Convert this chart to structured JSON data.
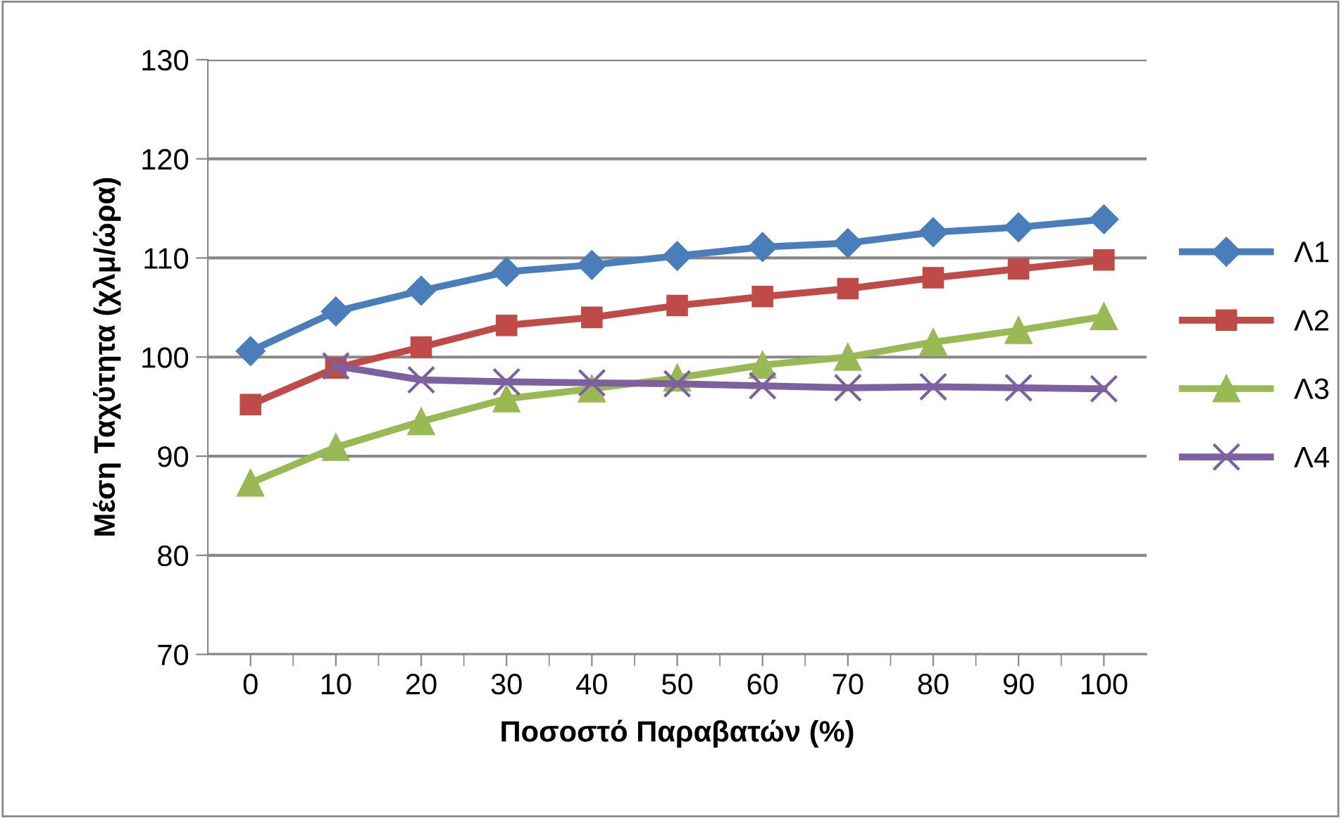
{
  "chart_data": {
    "type": "line",
    "xlabel": "Ποσοστό Παραβατών (%)",
    "ylabel": "Μέση Ταχύτητα (χλμ/ώρα)",
    "categories": [
      "0",
      "10",
      "20",
      "30",
      "40",
      "50",
      "60",
      "70",
      "80",
      "90",
      "100"
    ],
    "series": [
      {
        "name": "Λ1",
        "color": "#4a7ebb",
        "marker": "diamond",
        "values": [
          100.6,
          104.6,
          106.7,
          108.6,
          109.3,
          110.2,
          111.1,
          111.5,
          112.6,
          113.1,
          113.9
        ]
      },
      {
        "name": "Λ2",
        "color": "#be4b48",
        "marker": "square",
        "values": [
          95.2,
          98.9,
          101.0,
          103.2,
          104.0,
          105.2,
          106.1,
          106.9,
          108.0,
          108.9,
          109.8
        ]
      },
      {
        "name": "Λ3",
        "color": "#98b954",
        "marker": "triangle",
        "values": [
          87.3,
          90.9,
          93.5,
          95.8,
          96.8,
          97.9,
          99.2,
          100.0,
          101.5,
          102.7,
          104.1
        ]
      },
      {
        "name": "Λ4",
        "color": "#7d60a0",
        "marker": "cross",
        "values": [
          null,
          99.1,
          97.7,
          97.5,
          97.4,
          97.3,
          97.1,
          96.9,
          97.0,
          96.9,
          96.8
        ]
      }
    ],
    "ylim": [
      70,
      130
    ],
    "yticks": [
      70,
      80,
      90,
      100,
      110,
      120,
      130
    ],
    "grid": "y",
    "legend": "right",
    "line_style": "solid"
  }
}
